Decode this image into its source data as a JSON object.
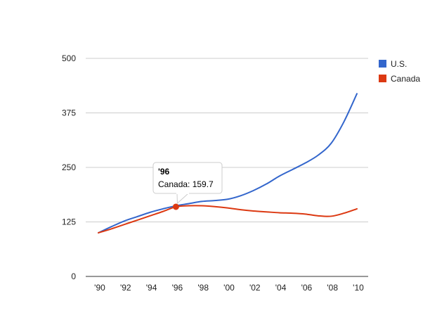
{
  "chart_data": {
    "type": "line",
    "title": "",
    "xlabel": "",
    "ylabel": "",
    "categories": [
      "'90",
      "'92",
      "'94",
      "'96",
      "'98",
      "'00",
      "'02",
      "'04",
      "'06",
      "'08",
      "'10"
    ],
    "x": [
      1990,
      1991,
      1992,
      1993,
      1994,
      1995,
      1996,
      1997,
      1998,
      1999,
      2000,
      2001,
      2002,
      2003,
      2004,
      2005,
      2006,
      2007,
      2008,
      2009,
      2010
    ],
    "series": [
      {
        "name": "U.S.",
        "color": "#3366cc",
        "values": [
          100,
          114,
          127,
          137,
          147,
          155,
          162,
          167,
          172,
          174,
          177,
          185,
          197,
          212,
          230,
          245,
          260,
          278,
          305,
          355,
          419
        ]
      },
      {
        "name": "Canada",
        "color": "#dc3912",
        "values": [
          100,
          109,
          119,
          129,
          139,
          149,
          159.7,
          162,
          162,
          160,
          157,
          153,
          150,
          148,
          146,
          145,
          143,
          139,
          138,
          145,
          155
        ]
      }
    ],
    "ylim": [
      0,
      500
    ],
    "yticks": [
      0,
      125,
      250,
      375,
      500
    ],
    "grid": true,
    "legend_position": "right",
    "tooltip": {
      "title": "'96",
      "text": "Canada: 159.7",
      "series_index": 1,
      "x": 1996,
      "y": 159.7
    }
  }
}
